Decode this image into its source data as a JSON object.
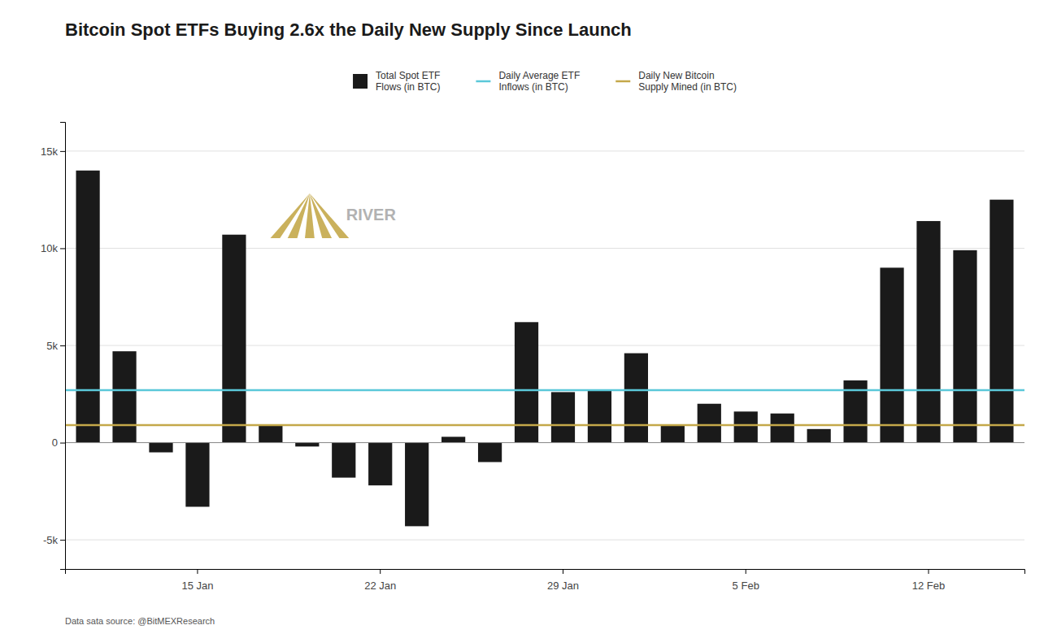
{
  "chart_data": {
    "type": "bar",
    "title": "Bitcoin Spot ETFs Buying 2.6x the Daily New Supply Since Launch",
    "subtitle": "Data sata source: @BitMEXResearch",
    "categories": [
      null,
      null,
      null,
      "15 Jan",
      null,
      null,
      null,
      null,
      "22 Jan",
      null,
      null,
      null,
      null,
      "29 Jan",
      null,
      null,
      null,
      null,
      "5 Feb",
      null,
      null,
      null,
      null,
      "12 Feb",
      null,
      null
    ],
    "series": [
      {
        "name": "Total Spot ETF\nFlows (in BTC)",
        "type": "bar",
        "color": "#1a1a1a",
        "values": [
          14000,
          4700,
          -500,
          -3300,
          10700,
          900,
          -200,
          -1800,
          -2200,
          -4300,
          300,
          -1000,
          6200,
          2600,
          2700,
          4600,
          900,
          2000,
          1600,
          1500,
          700,
          3200,
          9000,
          11400,
          9900,
          12500
        ]
      }
    ],
    "reference_lines": [
      {
        "name": "Daily Average ETF\nInflows (in BTC)",
        "value": 2700,
        "color": "#5BC8D9"
      },
      {
        "name": "Daily New Bitcoin\nSupply Mined (in BTC)",
        "value": 900,
        "color": "#C4A84A"
      }
    ],
    "annotations": [
      {
        "text": "RIVER",
        "color": "#aaaaaa",
        "logo_color": "#C4A84A"
      }
    ],
    "ylim": [
      -6500,
      16500
    ],
    "yticks": [
      {
        "value": -5000,
        "label": "-5k"
      },
      0,
      {
        "value": 5000,
        "label": "5k"
      },
      {
        "value": 10000,
        "label": "10k"
      },
      {
        "value": 15000,
        "label": "15k"
      }
    ],
    "grid": true,
    "legend": "top"
  }
}
